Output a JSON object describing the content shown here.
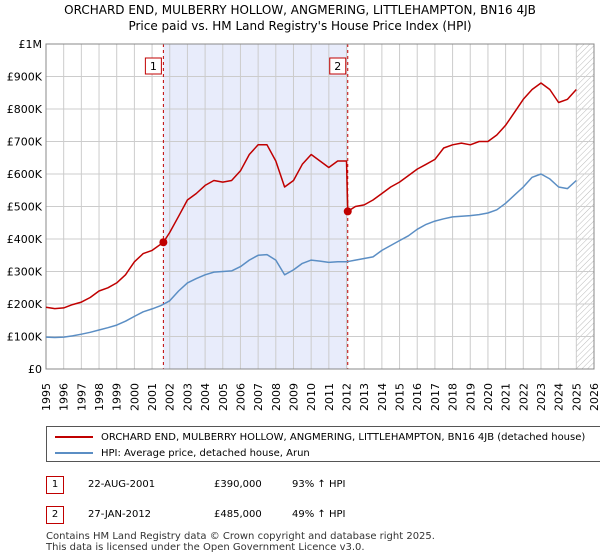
{
  "chart_data": {
    "type": "line",
    "title": "ORCHARD END, MULBERRY HOLLOW, ANGMERING, LITTLEHAMPTON, BN16 4JB",
    "subtitle": "Price paid vs. HM Land Registry's House Price Index (HPI)",
    "xlabel": "",
    "ylabel": "",
    "xlim": [
      1995,
      2026
    ],
    "ylim": [
      0,
      1000000
    ],
    "x_ticks": [
      "1995",
      "1996",
      "1997",
      "1998",
      "1999",
      "2000",
      "2001",
      "2002",
      "2003",
      "2004",
      "2005",
      "2006",
      "2007",
      "2008",
      "2009",
      "2010",
      "2011",
      "2012",
      "2013",
      "2014",
      "2015",
      "2016",
      "2017",
      "2018",
      "2019",
      "2020",
      "2021",
      "2022",
      "2023",
      "2024",
      "2025",
      "2026"
    ],
    "y_ticks": [
      {
        "value": 0,
        "label": "£0"
      },
      {
        "value": 100000,
        "label": "£100K"
      },
      {
        "value": 200000,
        "label": "£200K"
      },
      {
        "value": 300000,
        "label": "£300K"
      },
      {
        "value": 400000,
        "label": "£400K"
      },
      {
        "value": 500000,
        "label": "£500K"
      },
      {
        "value": 600000,
        "label": "£600K"
      },
      {
        "value": 700000,
        "label": "£700K"
      },
      {
        "value": 800000,
        "label": "£800K"
      },
      {
        "value": 900000,
        "label": "£900K"
      },
      {
        "value": 1000000,
        "label": "£1M"
      }
    ],
    "grid": true,
    "shaded_period": [
      2001.64,
      2012.07
    ],
    "hatched_after": 2025.0,
    "series": [
      {
        "name": "ORCHARD END, MULBERRY HOLLOW, ANGMERING, LITTLEHAMPTON, BN16 4JB (detached house)",
        "color": "#c00000",
        "x": [
          1995.0,
          1995.5,
          1996.0,
          1996.5,
          1997.0,
          1997.5,
          1998.0,
          1998.5,
          1999.0,
          1999.5,
          2000.0,
          2000.5,
          2001.0,
          2001.64,
          2002.0,
          2002.5,
          2003.0,
          2003.5,
          2004.0,
          2004.5,
          2005.0,
          2005.5,
          2006.0,
          2006.5,
          2007.0,
          2007.5,
          2008.0,
          2008.5,
          2009.0,
          2009.5,
          2010.0,
          2010.5,
          2011.0,
          2011.5,
          2012.0,
          2012.07,
          2012.5,
          2013.0,
          2013.5,
          2014.0,
          2014.5,
          2015.0,
          2015.5,
          2016.0,
          2016.5,
          2017.0,
          2017.5,
          2018.0,
          2018.5,
          2019.0,
          2019.5,
          2020.0,
          2020.5,
          2021.0,
          2021.5,
          2022.0,
          2022.5,
          2023.0,
          2023.5,
          2024.0,
          2024.5,
          2025.0
        ],
        "values": [
          190000,
          186000,
          188000,
          198000,
          206000,
          220000,
          240000,
          250000,
          265000,
          290000,
          330000,
          355000,
          365000,
          390000,
          420000,
          470000,
          520000,
          540000,
          565000,
          580000,
          575000,
          580000,
          610000,
          660000,
          690000,
          690000,
          640000,
          560000,
          580000,
          630000,
          660000,
          640000,
          620000,
          640000,
          640000,
          485000,
          500000,
          505000,
          520000,
          540000,
          560000,
          575000,
          595000,
          615000,
          630000,
          645000,
          680000,
          690000,
          695000,
          690000,
          700000,
          700000,
          720000,
          750000,
          790000,
          830000,
          860000,
          880000,
          860000,
          820000,
          830000,
          860000
        ]
      },
      {
        "name": "HPI: Average price, detached house, Arun",
        "color": "#5b8ec4",
        "x": [
          1995.0,
          1995.5,
          1996.0,
          1996.5,
          1997.0,
          1997.5,
          1998.0,
          1998.5,
          1999.0,
          1999.5,
          2000.0,
          2000.5,
          2001.0,
          2001.5,
          2002.0,
          2002.5,
          2003.0,
          2003.5,
          2004.0,
          2004.5,
          2005.0,
          2005.5,
          2006.0,
          2006.5,
          2007.0,
          2007.5,
          2008.0,
          2008.5,
          2009.0,
          2009.5,
          2010.0,
          2010.5,
          2011.0,
          2011.5,
          2012.0,
          2012.5,
          2013.0,
          2013.5,
          2014.0,
          2014.5,
          2015.0,
          2015.5,
          2016.0,
          2016.5,
          2017.0,
          2017.5,
          2018.0,
          2018.5,
          2019.0,
          2019.5,
          2020.0,
          2020.5,
          2021.0,
          2021.5,
          2022.0,
          2022.5,
          2023.0,
          2023.5,
          2024.0,
          2024.5,
          2025.0
        ],
        "values": [
          98000,
          97000,
          98000,
          102000,
          107000,
          113000,
          120000,
          127000,
          135000,
          147000,
          162000,
          176000,
          185000,
          195000,
          210000,
          240000,
          265000,
          278000,
          290000,
          298000,
          300000,
          302000,
          315000,
          335000,
          350000,
          352000,
          335000,
          290000,
          305000,
          325000,
          335000,
          332000,
          328000,
          330000,
          330000,
          335000,
          340000,
          345000,
          365000,
          380000,
          395000,
          410000,
          430000,
          445000,
          455000,
          462000,
          468000,
          470000,
          472000,
          475000,
          480000,
          490000,
          510000,
          535000,
          560000,
          590000,
          600000,
          585000,
          560000,
          555000,
          580000
        ]
      }
    ],
    "markers": [
      {
        "label": "1",
        "x": 2001.64,
        "value": 390000
      },
      {
        "label": "2",
        "x": 2012.07,
        "value": 485000
      }
    ]
  },
  "legend": {
    "property_label": "ORCHARD END, MULBERRY HOLLOW, ANGMERING, LITTLEHAMPTON, BN16 4JB (detached house)",
    "hpi_label": "HPI: Average price, detached house, Arun"
  },
  "transactions": [
    {
      "number": "1",
      "date": "22-AUG-2001",
      "price": "£390,000",
      "hpi_change": "93% ↑ HPI"
    },
    {
      "number": "2",
      "date": "27-JAN-2012",
      "price": "£485,000",
      "hpi_change": "49% ↑ HPI"
    }
  ],
  "footer": {
    "line1": "Contains HM Land Registry data © Crown copyright and database right 2025.",
    "line2": "This data is licensed under the Open Government Licence v3.0."
  }
}
